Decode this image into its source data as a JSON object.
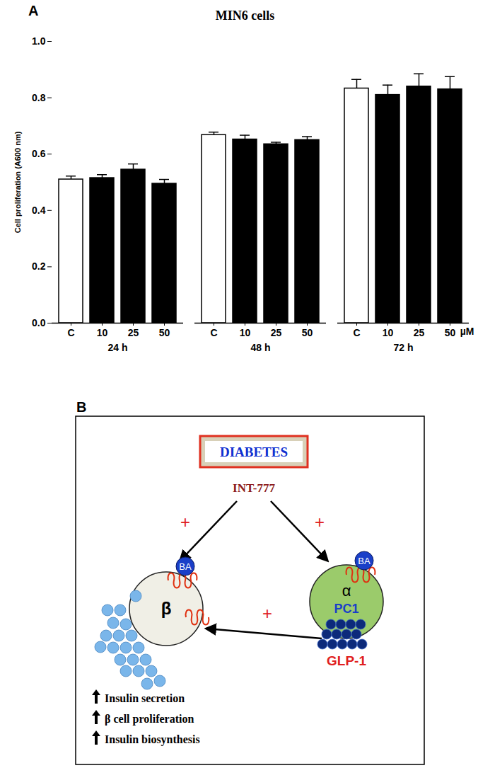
{
  "chart_data": {
    "type": "bar",
    "panel_label": "A",
    "title": "MIN6 cells",
    "y_label": "Cell proliferation (A600 nm)",
    "ylim": [
      0,
      1.0
    ],
    "yticks": [
      {
        "value": 0,
        "label": "0.0"
      },
      0.2,
      0.4,
      0.6,
      0.8,
      {
        "value": 1.0,
        "label": "1.0"
      }
    ],
    "grid": false,
    "unit_label": "µM",
    "categories": [
      "C",
      "10",
      "25",
      "50"
    ],
    "colors": [
      "#ffffff",
      "#000000",
      "#000000",
      "#000000"
    ],
    "groups": [
      {
        "name": "24 h",
        "values": [
          0.51,
          0.515,
          0.545,
          0.495
        ],
        "errors": [
          0.012,
          0.012,
          0.02,
          0.015
        ]
      },
      {
        "name": "48 h",
        "values": [
          0.668,
          0.652,
          0.635,
          0.65
        ],
        "errors": [
          0.01,
          0.015,
          0.007,
          0.012
        ]
      },
      {
        "name": "72 h",
        "values": [
          0.833,
          0.81,
          0.84,
          0.83
        ],
        "errors": [
          0.032,
          0.035,
          0.045,
          0.045
        ]
      }
    ]
  },
  "diagram": {
    "panel_label": "B",
    "title": "DIABETES",
    "drug": "INT-777",
    "cells": [
      {
        "label": "β",
        "receptor_ligand": "BA"
      },
      {
        "label": "α",
        "receptor_ligand": "BA",
        "marker": "PC1",
        "product": "GLP-1"
      }
    ],
    "arrows": [
      {
        "from": "INT-777",
        "to": "β",
        "label": "+"
      },
      {
        "from": "INT-777",
        "to": "α",
        "label": "+"
      },
      {
        "from": "GLP-1",
        "to": "β",
        "label": "+"
      }
    ],
    "outcomes": [
      "Insulin secretion",
      "β cell proliferation",
      "Insulin biosynthesis"
    ]
  }
}
